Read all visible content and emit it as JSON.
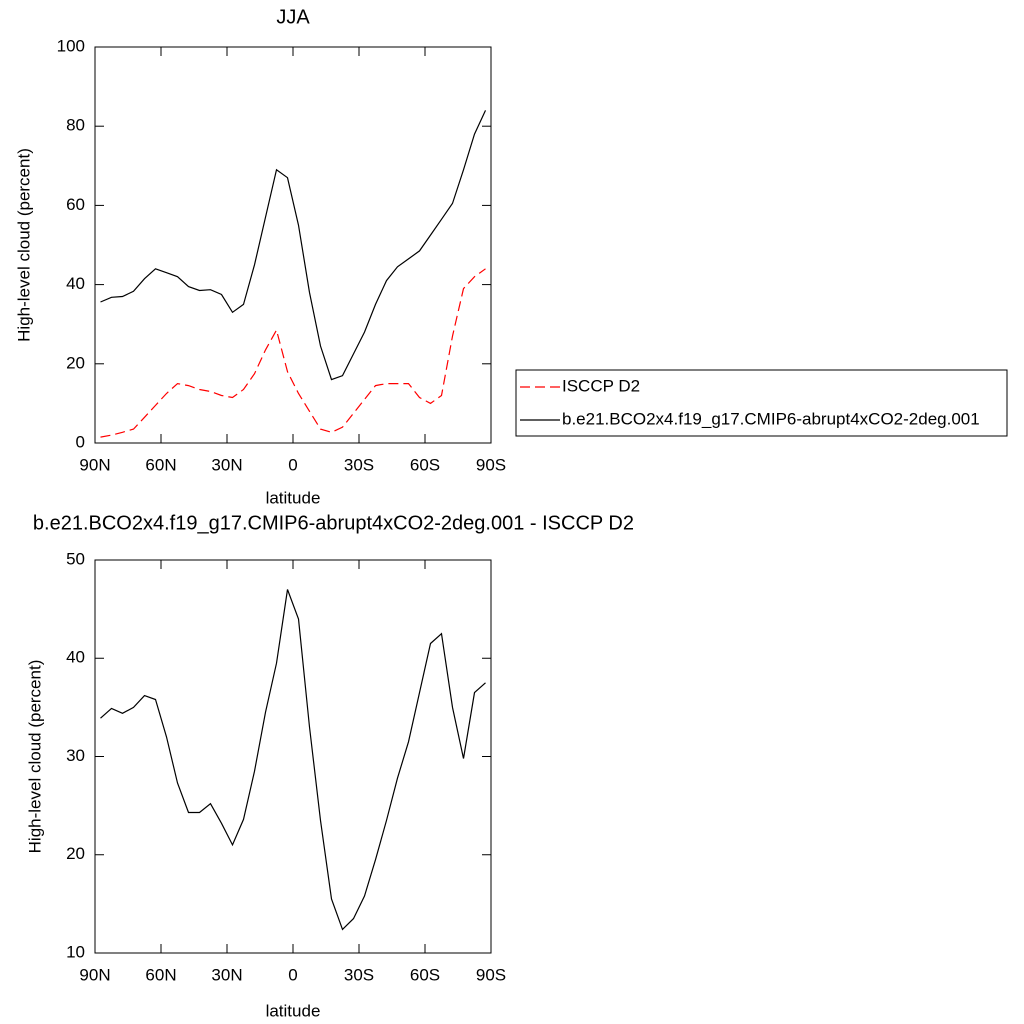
{
  "chart_data": [
    {
      "type": "line",
      "title": "JJA",
      "xlabel": "latitude",
      "ylabel": "High-level cloud (percent)",
      "x": [
        87.5,
        82.5,
        77.5,
        72.5,
        67.5,
        62.5,
        57.5,
        52.5,
        47.5,
        42.5,
        37.5,
        32.5,
        27.5,
        22.5,
        17.5,
        12.5,
        7.5,
        2.5,
        -2.5,
        -7.5,
        -12.5,
        -17.5,
        -22.5,
        -27.5,
        -32.5,
        -37.5,
        -42.5,
        -47.5,
        -52.5,
        -57.5,
        -62.5,
        -67.5,
        -72.5,
        -77.5,
        -82.5,
        -87.5
      ],
      "series": [
        {
          "name": "ISCCP D2",
          "color": "#ff0000",
          "dashed": true,
          "values": [
            1.5,
            2,
            2.7,
            3.5,
            6.5,
            9.5,
            12.5,
            15,
            14.5,
            13.5,
            13,
            12,
            11.5,
            13.5,
            17.5,
            23.5,
            28.5,
            18,
            12.5,
            8,
            3.5,
            2.7,
            4,
            7.5,
            11,
            14.5,
            15,
            15,
            15,
            11.5,
            10,
            12,
            27,
            39,
            42,
            44
          ]
        },
        {
          "name": "b.e21.BCO2x4.f19_g17.CMIP6-abrupt4xCO2-2deg.001",
          "color": "#000000",
          "dashed": false,
          "values": [
            35.6,
            36.8,
            37,
            38.3,
            41.5,
            44,
            43,
            42,
            39.5,
            38.5,
            38.7,
            37.5,
            33,
            35,
            45,
            57,
            69,
            67,
            55,
            38,
            24.5,
            16,
            17,
            22.5,
            28,
            35,
            41,
            44.5,
            46.5,
            48.5,
            52.5,
            56.5,
            60.5,
            69,
            78,
            84
          ]
        }
      ],
      "xlim": [
        90,
        -90
      ],
      "xticks": [
        {
          "value": 90,
          "label": "90N"
        },
        {
          "value": 60,
          "label": "60N"
        },
        {
          "value": 30,
          "label": "30N"
        },
        0,
        {
          "value": -30,
          "label": "30S"
        },
        {
          "value": -60,
          "label": "60S"
        },
        {
          "value": -90,
          "label": "90S"
        }
      ],
      "ylim": [
        0,
        100
      ],
      "yticks": [
        0,
        20,
        40,
        60,
        80,
        100
      ],
      "legend": "right"
    },
    {
      "type": "line",
      "title": "b.e21.BCO2x4.f19_g17.CMIP6-abrupt4xCO2-2deg.001 - ISCCP D2",
      "xlabel": "latitude",
      "ylabel": "High-level cloud (percent)",
      "x": [
        87.5,
        82.5,
        77.5,
        72.5,
        67.5,
        62.5,
        57.5,
        52.5,
        47.5,
        42.5,
        37.5,
        32.5,
        27.5,
        22.5,
        17.5,
        12.5,
        7.5,
        2.5,
        -2.5,
        -7.5,
        -12.5,
        -17.5,
        -22.5,
        -27.5,
        -32.5,
        -37.5,
        -42.5,
        -47.5,
        -52.5,
        -57.5,
        -62.5,
        -67.5,
        -72.5,
        -77.5,
        -82.5,
        -87.5
      ],
      "values": [
        33.9,
        34.9,
        34.4,
        35,
        36.2,
        35.8,
        32,
        27.3,
        24.3,
        24.3,
        25.2,
        23.2,
        21,
        23.6,
        28.5,
        34.5,
        39.5,
        47,
        44,
        33,
        23.5,
        15.5,
        12.4,
        13.5,
        15.8,
        19.5,
        23.5,
        27.8,
        31.5,
        36.5,
        41.5,
        42.5,
        35,
        29.8,
        36.5,
        37.5
      ],
      "color": "#000000",
      "xlim": [
        90,
        -90
      ],
      "xticks": [
        {
          "value": 90,
          "label": "90N"
        },
        {
          "value": 60,
          "label": "60N"
        },
        {
          "value": 30,
          "label": "30N"
        },
        0,
        {
          "value": -30,
          "label": "30S"
        },
        {
          "value": -60,
          "label": "60S"
        },
        {
          "value": -90,
          "label": "90S"
        }
      ],
      "ylim": [
        10,
        50
      ],
      "yticks": [
        10,
        20,
        30,
        40,
        50
      ]
    }
  ]
}
